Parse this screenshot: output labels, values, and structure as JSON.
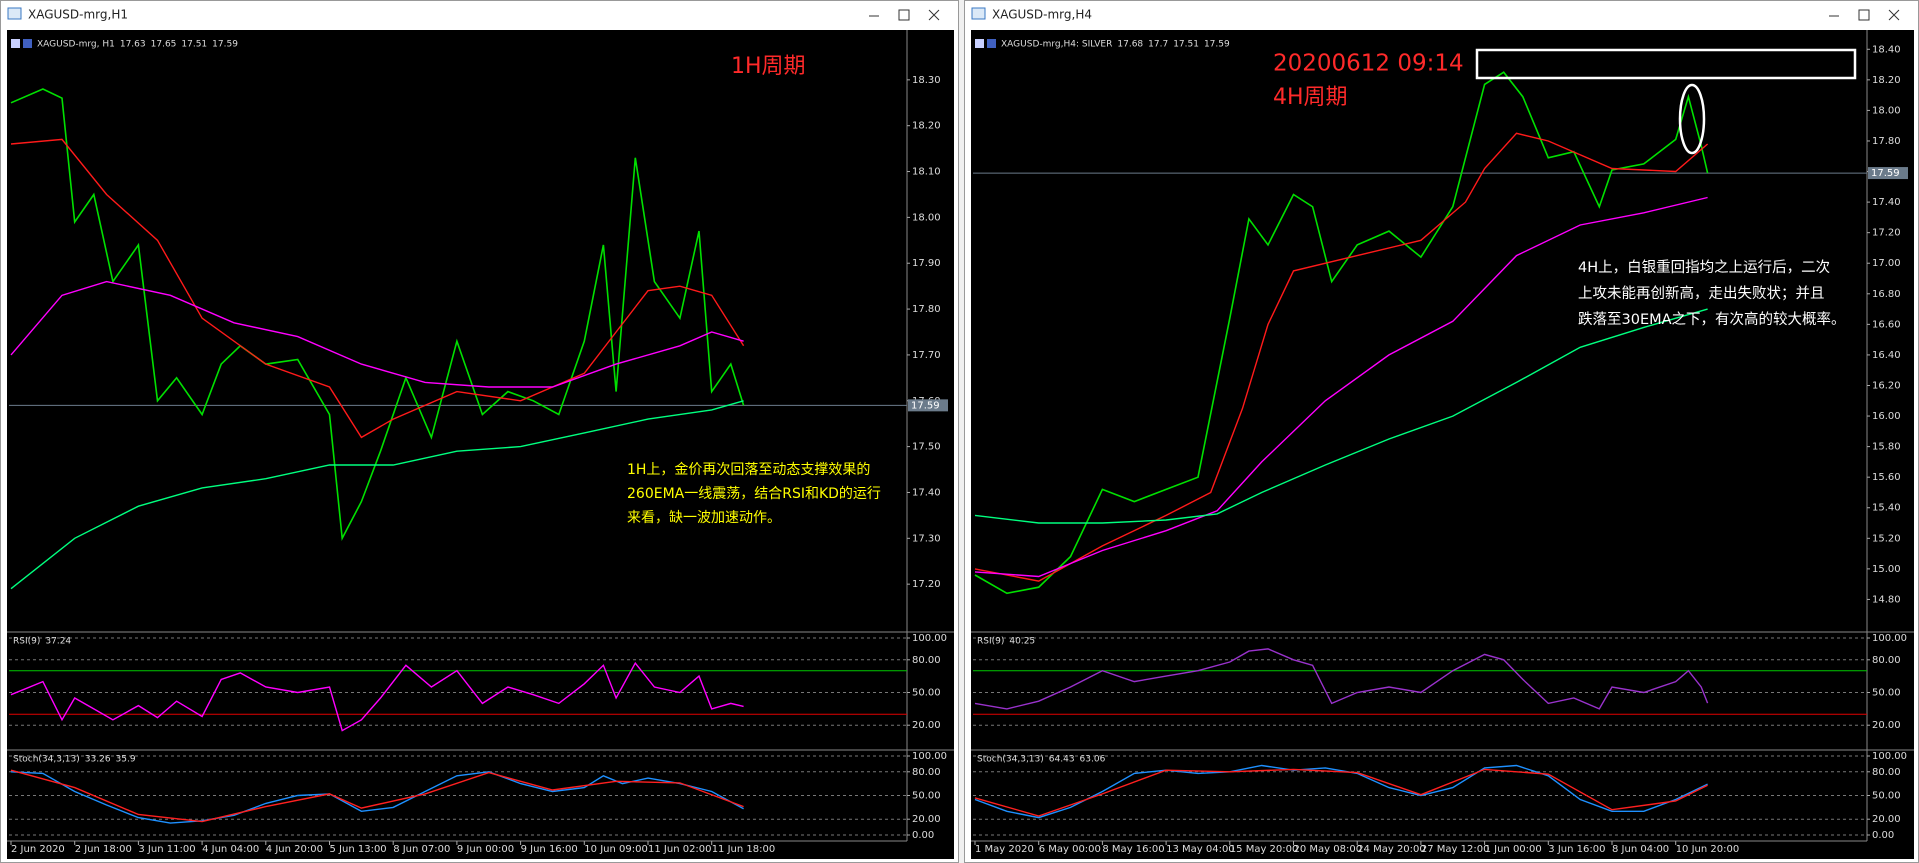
{
  "windows": [
    {
      "title": "XAGUSD-mrg,H1",
      "symbol": "XAGUSD-mrg, H1",
      "ohlc": [
        17.63,
        17.65,
        17.51,
        17.59
      ],
      "time_labels": [
        "2 Jun 2020",
        "2 Jun 18:00",
        "3 Jun 11:00",
        "4 Jun 04:00",
        "4 Jun 20:00",
        "5 Jun 13:00",
        "8 Jun 07:00",
        "9 Jun 00:00",
        "9 Jun 16:00",
        "10 Jun 09:00",
        "11 Jun 02:00",
        "11 Jun 18:00"
      ],
      "price": {
        "type": "line",
        "ylim": [
          17.1,
          18.4
        ],
        "yticks": [
          {
            "value": 17.2,
            "label": "17.20"
          },
          {
            "value": 17.3,
            "label": "17.30"
          },
          {
            "value": 17.4,
            "label": "17.40"
          },
          {
            "value": 17.5,
            "label": "17.50"
          },
          {
            "value": 17.6,
            "label": "17.60"
          },
          {
            "value": 17.7,
            "label": "17.70"
          },
          {
            "value": 17.8,
            "label": "17.80"
          },
          {
            "value": 17.9,
            "label": "17.90"
          },
          {
            "value": 18.0,
            "label": "18.00"
          },
          {
            "value": 18.1,
            "label": "18.10"
          },
          {
            "value": 18.2,
            "label": "18.20"
          },
          {
            "value": 18.3,
            "label": "18.30"
          }
        ],
        "series": [
          {
            "color": "#00e000",
            "x": [
              0,
              0.5,
              0.8,
              1,
              1.3,
              1.6,
              2,
              2.3,
              2.6,
              3,
              3.3,
              3.6,
              4,
              4.5,
              5,
              5.2,
              5.5,
              5.8,
              6.2,
              6.6,
              7,
              7.4,
              7.8,
              8.2,
              8.6,
              9,
              9.3,
              9.5,
              9.8,
              10.1,
              10.5,
              10.8,
              11,
              11.3,
              11.5
            ],
            "values": [
              18.25,
              18.28,
              18.26,
              17.99,
              18.05,
              17.86,
              17.94,
              17.6,
              17.65,
              17.57,
              17.68,
              17.72,
              17.68,
              17.69,
              17.57,
              17.3,
              17.38,
              17.49,
              17.65,
              17.52,
              17.73,
              17.57,
              17.62,
              17.6,
              17.57,
              17.73,
              17.94,
              17.62,
              18.13,
              17.86,
              17.78,
              17.97,
              17.62,
              17.68,
              17.59
            ]
          },
          {
            "color": "#ff1a1a",
            "x": [
              0,
              0.8,
              1.5,
              2.3,
              3,
              4,
              5,
              5.5,
              6,
              7,
              8,
              9,
              9.5,
              10,
              10.5,
              11,
              11.5
            ],
            "values": [
              18.16,
              18.17,
              18.05,
              17.95,
              17.78,
              17.68,
              17.63,
              17.52,
              17.56,
              17.62,
              17.6,
              17.66,
              17.75,
              17.84,
              17.85,
              17.83,
              17.72
            ]
          },
          {
            "color": "#ff00ff",
            "x": [
              0,
              0.8,
              1.5,
              2.5,
              3.5,
              4.5,
              5.5,
              6.5,
              7.5,
              8.5,
              9.5,
              10.5,
              11,
              11.5
            ],
            "values": [
              17.7,
              17.83,
              17.86,
              17.83,
              17.77,
              17.74,
              17.68,
              17.64,
              17.63,
              17.63,
              17.68,
              17.72,
              17.75,
              17.73
            ]
          },
          {
            "color": "#00ff7f",
            "x": [
              0,
              1,
              2,
              3,
              4,
              5,
              6,
              7,
              8,
              9,
              10,
              11,
              11.5
            ],
            "values": [
              17.19,
              17.3,
              17.37,
              17.41,
              17.43,
              17.46,
              17.46,
              17.49,
              17.5,
              17.53,
              17.56,
              17.58,
              17.6
            ]
          }
        ]
      },
      "rsi": {
        "label": "RSI(9)",
        "value": 37.24,
        "ylim": [
          0,
          100
        ],
        "yticks": [
          {
            "value": 100,
            "label": "100.00"
          },
          {
            "value": 80,
            "label": "80.00"
          },
          {
            "value": 50,
            "label": "50.00"
          },
          {
            "value": 20,
            "label": "20.00"
          }
        ],
        "levels": [
          {
            "value": 70,
            "color": "#00c800"
          },
          {
            "value": 30,
            "color": "#e00000"
          }
        ],
        "series": [
          {
            "color": "#ff00ff",
            "x": [
              0,
              0.5,
              0.8,
              1,
              1.3,
              1.6,
              2,
              2.3,
              2.6,
              3,
              3.3,
              3.6,
              4,
              4.5,
              5,
              5.2,
              5.5,
              5.8,
              6.2,
              6.6,
              7,
              7.4,
              7.8,
              8.2,
              8.6,
              9,
              9.3,
              9.5,
              9.8,
              10.1,
              10.5,
              10.8,
              11,
              11.3,
              11.5
            ],
            "values": [
              48,
              60,
              25,
              45,
              35,
              25,
              38,
              27,
              42,
              28,
              62,
              68,
              55,
              50,
              55,
              15,
              25,
              45,
              75,
              55,
              70,
              40,
              55,
              48,
              40,
              58,
              75,
              45,
              77,
              55,
              50,
              65,
              35,
              40,
              37.24
            ]
          }
        ]
      },
      "stoch": {
        "label": "Stoch(34,3,13)",
        "main": 33.26,
        "signal": 35.9,
        "ylim": [
          0,
          100
        ],
        "yticks": [
          {
            "value": 100,
            "label": "100.00"
          },
          {
            "value": 80,
            "label": "80.00"
          },
          {
            "value": 50,
            "label": "50.00"
          },
          {
            "value": 20,
            "label": "20.00"
          },
          {
            "value": 0,
            "label": "0.00"
          }
        ],
        "series": [
          {
            "color": "#1e90ff",
            "x": [
              0,
              0.5,
              1,
              1.5,
              2,
              2.5,
              3,
              3.5,
              4,
              4.5,
              5,
              5.5,
              6,
              6.5,
              7,
              7.5,
              8,
              8.5,
              9,
              9.3,
              9.6,
              10,
              10.5,
              11,
              11.5
            ],
            "values": [
              80,
              78,
              55,
              38,
              22,
              15,
              18,
              25,
              40,
              50,
              52,
              30,
              35,
              55,
              75,
              80,
              65,
              55,
              60,
              75,
              65,
              72,
              65,
              55,
              33.26
            ]
          },
          {
            "color": "#ff2020",
            "x": [
              0,
              1,
              2,
              3,
              4,
              5,
              5.5,
              6.5,
              7.5,
              8.5,
              9.5,
              10.5,
              11.5
            ],
            "values": [
              82,
              60,
              26,
              17,
              36,
              52,
              34,
              52,
              79,
              57,
              68,
              66,
              35.9
            ]
          }
        ]
      },
      "annotations": {
        "period": "1H周期",
        "note": [
          "1H上，金价再次回落至动态支撑效果的",
          "260EMA一线震荡，结合RSI和KD的运行",
          "来看，缺一波加速动作。"
        ]
      }
    },
    {
      "title": "XAGUSD-mrg,H4",
      "symbol": "XAGUSD-mrg,H4: SILVER",
      "ohlc": [
        17.68,
        17.7,
        17.51,
        17.59
      ],
      "time_labels": [
        "1 May 2020",
        "6 May 00:00",
        "8 May 16:00",
        "13 May 04:00",
        "15 May 20:00",
        "20 May 08:00",
        "24 May 20:00",
        "27 May 12:00",
        "1 Jun 00:00",
        "3 Jun 16:00",
        "8 Jun 04:00",
        "10 Jun 20:00"
      ],
      "price": {
        "type": "line",
        "ylim": [
          14.6,
          18.5
        ],
        "yticks": [
          {
            "value": 14.8,
            "label": "14.80"
          },
          {
            "value": 15.0,
            "label": "15.00"
          },
          {
            "value": 15.2,
            "label": "15.20"
          },
          {
            "value": 15.4,
            "label": "15.40"
          },
          {
            "value": 15.6,
            "label": "15.60"
          },
          {
            "value": 15.8,
            "label": "15.80"
          },
          {
            "value": 16.0,
            "label": "16.00"
          },
          {
            "value": 16.2,
            "label": "16.20"
          },
          {
            "value": 16.4,
            "label": "16.40"
          },
          {
            "value": 16.6,
            "label": "16.60"
          },
          {
            "value": 16.8,
            "label": "16.80"
          },
          {
            "value": 17.0,
            "label": "17.00"
          },
          {
            "value": 17.2,
            "label": "17.20"
          },
          {
            "value": 17.4,
            "label": "17.40"
          },
          {
            "value": 17.6,
            "label": "17.60"
          },
          {
            "value": 17.8,
            "label": "17.80"
          },
          {
            "value": 18.0,
            "label": "18.00"
          },
          {
            "value": 18.2,
            "label": "18.20"
          },
          {
            "value": 18.4,
            "label": "18.40"
          }
        ],
        "series": [
          {
            "color": "#00e000",
            "x": [
              0,
              0.5,
              1,
              1.5,
              2,
              2.5,
              3,
              3.5,
              4,
              4.3,
              4.6,
              5,
              5.3,
              5.6,
              6,
              6.5,
              7,
              7.5,
              8,
              8.3,
              8.6,
              9,
              9.4,
              9.8,
              10,
              10.5,
              11,
              11.2,
              11.4,
              11.5
            ],
            "values": [
              14.96,
              14.84,
              14.88,
              15.08,
              15.52,
              15.44,
              15.52,
              15.6,
              16.64,
              17.29,
              17.12,
              17.45,
              17.37,
              16.88,
              17.12,
              17.21,
              17.04,
              17.37,
              18.17,
              18.25,
              18.09,
              17.69,
              17.73,
              17.37,
              17.61,
              17.65,
              17.81,
              18.09,
              17.77,
              17.59
            ]
          },
          {
            "color": "#ff1a1a",
            "x": [
              0,
              1,
              2,
              3,
              3.7,
              4.2,
              4.6,
              5,
              6,
              7,
              7.7,
              8,
              8.5,
              9,
              10,
              11,
              11.5
            ],
            "values": [
              15.0,
              14.92,
              15.15,
              15.35,
              15.5,
              16.05,
              16.6,
              16.95,
              17.05,
              17.15,
              17.4,
              17.62,
              17.85,
              17.8,
              17.62,
              17.6,
              17.78
            ]
          },
          {
            "color": "#ff00ff",
            "x": [
              0,
              1,
              2,
              3,
              3.8,
              4.5,
              5.5,
              6.5,
              7.5,
              8.5,
              9.5,
              10.5,
              11.5
            ],
            "values": [
              14.98,
              14.95,
              15.12,
              15.25,
              15.38,
              15.7,
              16.1,
              16.4,
              16.62,
              17.05,
              17.25,
              17.33,
              17.43
            ]
          },
          {
            "color": "#00ff7f",
            "x": [
              0,
              1,
              2,
              3,
              3.8,
              4.5,
              5.5,
              6.5,
              7.5,
              8.5,
              9.5,
              10.5,
              11.5
            ],
            "values": [
              15.35,
              15.3,
              15.3,
              15.32,
              15.36,
              15.5,
              15.68,
              15.85,
              16.0,
              16.22,
              16.45,
              16.58,
              16.7
            ]
          }
        ]
      },
      "rsi": {
        "label": "RSI(9)",
        "value": 40.25,
        "ylim": [
          0,
          100
        ],
        "yticks": [
          {
            "value": 100,
            "label": "100.00"
          },
          {
            "value": 80,
            "label": "80.00"
          },
          {
            "value": 50,
            "label": "50.00"
          },
          {
            "value": 20,
            "label": "20.00"
          }
        ],
        "levels": [
          {
            "value": 70,
            "color": "#00c800"
          },
          {
            "value": 30,
            "color": "#e00000"
          }
        ],
        "series": [
          {
            "color": "#9932cc",
            "x": [
              0,
              0.5,
              1,
              1.5,
              2,
              2.5,
              3,
              3.5,
              4,
              4.3,
              4.6,
              5,
              5.3,
              5.6,
              6,
              6.5,
              7,
              7.5,
              8,
              8.3,
              8.6,
              9,
              9.4,
              9.8,
              10,
              10.5,
              11,
              11.2,
              11.4,
              11.5
            ],
            "values": [
              40,
              35,
              42,
              55,
              70,
              60,
              65,
              70,
              78,
              88,
              90,
              80,
              75,
              40,
              50,
              55,
              50,
              70,
              85,
              80,
              62,
              40,
              45,
              35,
              55,
              50,
              60,
              70,
              55,
              40.25
            ]
          }
        ]
      },
      "stoch": {
        "label": "Stoch(34,3,13)",
        "main": 64.43,
        "signal": 63.06,
        "ylim": [
          0,
          100
        ],
        "yticks": [
          {
            "value": 100,
            "label": "100.00"
          },
          {
            "value": 80,
            "label": "80.00"
          },
          {
            "value": 50,
            "label": "50.00"
          },
          {
            "value": 20,
            "label": "20.00"
          },
          {
            "value": 0,
            "label": "0.00"
          }
        ],
        "series": [
          {
            "color": "#1e90ff",
            "x": [
              0,
              0.5,
              1,
              1.5,
              2,
              2.5,
              3,
              3.5,
              4,
              4.5,
              5,
              5.5,
              6,
              6.5,
              7,
              7.5,
              8,
              8.5,
              9,
              9.5,
              10,
              10.5,
              11,
              11.5
            ],
            "values": [
              45,
              30,
              22,
              35,
              55,
              78,
              82,
              78,
              80,
              88,
              82,
              85,
              78,
              60,
              50,
              60,
              85,
              88,
              75,
              45,
              30,
              30,
              45,
              64.43
            ]
          },
          {
            "color": "#ff2020",
            "x": [
              0,
              1,
              2,
              3,
              4,
              5,
              6,
              7,
              8,
              9,
              10,
              11,
              11.5
            ],
            "values": [
              47,
              24,
              52,
              82,
              80,
              83,
              79,
              51,
              83,
              77,
              32,
              43,
              63.06
            ]
          }
        ]
      },
      "annotations": {
        "timestamp": "20200612 09:14",
        "period": "4H周期",
        "note": [
          "4H上，白银重回指均之上运行后，二次",
          "上攻未能再创新高，走出失败状；并且",
          "跌落至30EMA之下，有次高的较大概率。"
        ]
      }
    }
  ]
}
